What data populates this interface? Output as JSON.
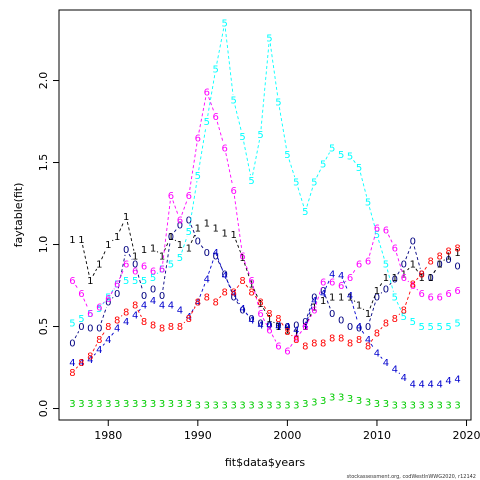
{
  "chart_data": {
    "type": "line",
    "xlabel": "fit$data$years",
    "ylabel": "faytable(fit)",
    "xlim": [
      1974.5,
      2020.5
    ],
    "ylim": [
      -0.07,
      2.43
    ],
    "xticks": [
      1980,
      1990,
      2000,
      2010,
      2020
    ],
    "yticks": [
      0.0,
      0.5,
      1.0,
      1.5,
      2.0
    ],
    "ytick_labels": [
      "0.0",
      "0.5",
      "1.0",
      "1.5",
      "2.0"
    ],
    "grid": false,
    "line_style": "dashed",
    "series": [
      {
        "label": "0",
        "color": "#000080",
        "x": [
          1976,
          1977,
          1978,
          1979,
          1980,
          1981,
          1982,
          1983,
          1984,
          1985,
          1986,
          1987,
          1988,
          1989,
          1990,
          1991,
          1992,
          1993,
          1994,
          1995,
          1996,
          1997,
          1998,
          1999,
          2000,
          2001,
          2002,
          2003,
          2004,
          2005,
          2006,
          2007,
          2008,
          2009,
          2010,
          2011,
          2012,
          2013,
          2014,
          2015,
          2016,
          2017,
          2018,
          2019
        ],
        "y": [
          0.4,
          0.5,
          0.49,
          0.49,
          0.65,
          0.7,
          0.97,
          0.88,
          0.69,
          0.73,
          0.69,
          1.05,
          1.12,
          1.15,
          1.02,
          0.95,
          0.93,
          0.82,
          0.68,
          0.6,
          0.55,
          0.52,
          0.51,
          0.51,
          0.5,
          0.51,
          0.53,
          0.68,
          0.72,
          0.58,
          0.54,
          0.5,
          0.49,
          0.5,
          0.68,
          0.73,
          0.79,
          0.88,
          1.02,
          0.82,
          0.8,
          0.88,
          0.91,
          0.87
        ]
      },
      {
        "label": "1",
        "color": "#000000",
        "x": [
          1976,
          1977,
          1978,
          1979,
          1980,
          1981,
          1982,
          1983,
          1984,
          1985,
          1986,
          1987,
          1988,
          1989,
          1990,
          1991,
          1992,
          1993,
          1994,
          1995,
          1996,
          1997,
          1998,
          1999,
          2000,
          2001,
          2002,
          2003,
          2004,
          2005,
          2006,
          2007,
          2008,
          2009,
          2010,
          2011,
          2012,
          2013,
          2014,
          2015,
          2016,
          2017,
          2018,
          2019
        ],
        "y": [
          1.03,
          1.03,
          0.78,
          0.88,
          1.0,
          1.05,
          1.17,
          0.93,
          0.97,
          0.98,
          0.93,
          1.05,
          1.0,
          0.98,
          1.1,
          1.13,
          1.1,
          1.07,
          1.06,
          0.92,
          0.76,
          0.64,
          0.55,
          0.5,
          0.48,
          0.46,
          0.5,
          0.62,
          0.66,
          0.68,
          0.68,
          0.68,
          0.63,
          0.58,
          0.72,
          0.8,
          0.8,
          0.82,
          0.88,
          0.8,
          0.8,
          0.88,
          0.93,
          0.95
        ]
      },
      {
        "label": "3",
        "color": "#00cd00",
        "x": [
          1976,
          1977,
          1978,
          1979,
          1980,
          1981,
          1982,
          1983,
          1984,
          1985,
          1986,
          1987,
          1988,
          1989,
          1990,
          1991,
          1992,
          1993,
          1994,
          1995,
          1996,
          1997,
          1998,
          1999,
          2000,
          2001,
          2002,
          2003,
          2004,
          2005,
          2006,
          2007,
          2008,
          2009,
          2010,
          2011,
          2012,
          2013,
          2014,
          2015,
          2016,
          2017,
          2018,
          2019
        ],
        "y": [
          0.03,
          0.03,
          0.03,
          0.03,
          0.03,
          0.03,
          0.03,
          0.03,
          0.03,
          0.03,
          0.03,
          0.03,
          0.03,
          0.03,
          0.02,
          0.02,
          0.02,
          0.02,
          0.02,
          0.02,
          0.02,
          0.02,
          0.02,
          0.02,
          0.02,
          0.02,
          0.03,
          0.04,
          0.05,
          0.07,
          0.07,
          0.06,
          0.05,
          0.04,
          0.03,
          0.03,
          0.02,
          0.02,
          0.02,
          0.02,
          0.02,
          0.02,
          0.02,
          0.02
        ]
      },
      {
        "label": "4",
        "color": "#0000cd",
        "x": [
          1976,
          1977,
          1978,
          1979,
          1980,
          1981,
          1982,
          1983,
          1984,
          1985,
          1986,
          1987,
          1988,
          1989,
          1990,
          1991,
          1992,
          1993,
          1994,
          1995,
          1996,
          1997,
          1998,
          1999,
          2000,
          2001,
          2002,
          2003,
          2004,
          2005,
          2006,
          2007,
          2008,
          2009,
          2010,
          2011,
          2012,
          2013,
          2014,
          2015,
          2016,
          2017,
          2018,
          2019
        ],
        "y": [
          0.28,
          0.28,
          0.3,
          0.36,
          0.42,
          0.49,
          0.53,
          0.57,
          0.63,
          0.66,
          0.63,
          0.63,
          0.6,
          0.56,
          0.65,
          0.79,
          0.95,
          0.81,
          0.7,
          0.61,
          0.54,
          0.51,
          0.51,
          0.5,
          0.5,
          0.48,
          0.51,
          0.66,
          0.7,
          0.82,
          0.81,
          0.69,
          0.5,
          0.42,
          0.34,
          0.28,
          0.24,
          0.19,
          0.15,
          0.15,
          0.15,
          0.15,
          0.17,
          0.18
        ]
      },
      {
        "label": "5",
        "color": "#00ffff",
        "x": [
          1976,
          1977,
          1978,
          1979,
          1980,
          1981,
          1982,
          1983,
          1984,
          1985,
          1986,
          1987,
          1988,
          1989,
          1990,
          1991,
          1992,
          1993,
          1994,
          1995,
          1996,
          1997,
          1998,
          1999,
          2000,
          2001,
          2002,
          2003,
          2004,
          2005,
          2006,
          2007,
          2008,
          2009,
          2010,
          2011,
          2012,
          2013,
          2014,
          2015,
          2016,
          2017,
          2018,
          2019
        ],
        "y": [
          0.52,
          0.55,
          0.58,
          0.61,
          0.68,
          0.76,
          0.78,
          0.78,
          0.78,
          0.8,
          0.85,
          0.88,
          0.92,
          1.08,
          1.42,
          1.75,
          2.07,
          2.35,
          1.88,
          1.66,
          1.39,
          1.67,
          2.26,
          1.87,
          1.55,
          1.38,
          1.2,
          1.38,
          1.49,
          1.59,
          1.55,
          1.54,
          1.47,
          1.26,
          1.06,
          0.88,
          0.68,
          0.56,
          0.53,
          0.5,
          0.5,
          0.5,
          0.5,
          0.52
        ]
      },
      {
        "label": "6",
        "color": "#ff00ff",
        "x": [
          1976,
          1977,
          1978,
          1979,
          1980,
          1981,
          1982,
          1983,
          1984,
          1985,
          1986,
          1987,
          1988,
          1989,
          1990,
          1991,
          1992,
          1993,
          1994,
          1995,
          1996,
          1997,
          1998,
          1999,
          2000,
          2001,
          2002,
          2003,
          2004,
          2005,
          2006,
          2007,
          2008,
          2009,
          2010,
          2011,
          2012,
          2013,
          2014,
          2015,
          2016,
          2017,
          2018,
          2019
        ],
        "y": [
          0.78,
          0.7,
          0.58,
          0.62,
          0.67,
          0.76,
          0.88,
          0.84,
          0.87,
          0.84,
          0.85,
          1.3,
          1.15,
          1.3,
          1.65,
          1.93,
          1.78,
          1.59,
          1.33,
          0.93,
          0.78,
          0.58,
          0.48,
          0.38,
          0.35,
          0.43,
          0.5,
          0.6,
          0.77,
          0.77,
          0.75,
          0.8,
          0.88,
          0.9,
          1.1,
          1.09,
          0.98,
          0.8,
          0.75,
          0.7,
          0.68,
          0.68,
          0.7,
          0.72
        ]
      },
      {
        "label": "8",
        "color": "#ff0000",
        "x": [
          1976,
          1977,
          1978,
          1979,
          1980,
          1981,
          1982,
          1983,
          1984,
          1985,
          1986,
          1987,
          1988,
          1989,
          1990,
          1991,
          1992,
          1993,
          1994,
          1995,
          1996,
          1997,
          1998,
          1999,
          2000,
          2001,
          2002,
          2003,
          2004,
          2005,
          2006,
          2007,
          2008,
          2009,
          2010,
          2011,
          2012,
          2013,
          2014,
          2015,
          2016,
          2017,
          2018,
          2019
        ],
        "y": [
          0.22,
          0.28,
          0.32,
          0.42,
          0.5,
          0.54,
          0.59,
          0.63,
          0.53,
          0.51,
          0.49,
          0.5,
          0.5,
          0.55,
          0.65,
          0.68,
          0.65,
          0.71,
          0.71,
          0.78,
          0.71,
          0.65,
          0.58,
          0.55,
          0.47,
          0.42,
          0.38,
          0.4,
          0.4,
          0.43,
          0.43,
          0.4,
          0.42,
          0.38,
          0.46,
          0.52,
          0.55,
          0.6,
          0.76,
          0.82,
          0.9,
          0.93,
          0.96,
          0.98
        ]
      }
    ]
  },
  "footnote": "stockassessment.org, codWestInWWG2020, r12142"
}
